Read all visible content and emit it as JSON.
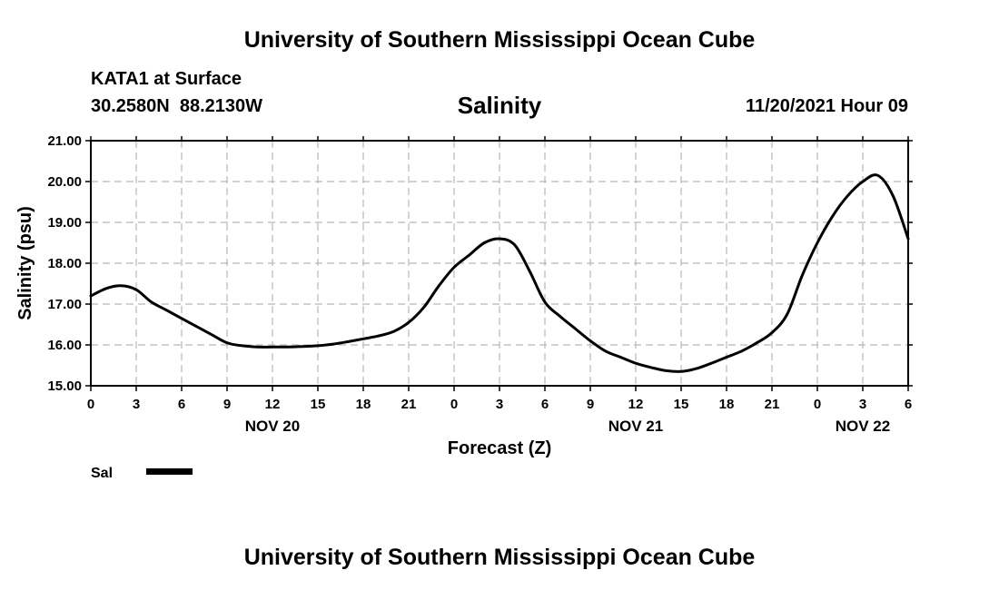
{
  "header": {
    "title": "University of Southern Mississippi Ocean Cube",
    "station": "KATA1 at Surface",
    "coords": "30.2580N  88.2130W",
    "variable": "Salinity",
    "datetime": "11/20/2021 Hour 09"
  },
  "footer": {
    "title": "University of Southern Mississippi Ocean Cube"
  },
  "legend": {
    "label": "Sal"
  },
  "colors": {
    "line": "#000000",
    "grid": "#b8b8b8",
    "background": "#ffffff"
  },
  "chart_data": {
    "type": "line",
    "title": "Salinity",
    "xlabel": "Forecast (Z)",
    "ylabel": "Salinity (psu)",
    "xlim": [
      0,
      54
    ],
    "ylim": [
      15.0,
      21.0
    ],
    "grid": true,
    "legend_position": "bottom-left",
    "x_ticks": [
      0,
      3,
      6,
      9,
      12,
      15,
      18,
      21,
      24,
      27,
      30,
      33,
      36,
      39,
      42,
      45,
      48,
      51,
      54
    ],
    "x_tick_labels": [
      "0",
      "3",
      "6",
      "9",
      "12",
      "15",
      "18",
      "21",
      "0",
      "3",
      "6",
      "9",
      "12",
      "15",
      "18",
      "21",
      "0",
      "3",
      "6"
    ],
    "y_ticks": [
      15.0,
      16.0,
      17.0,
      18.0,
      19.0,
      20.0,
      21.0
    ],
    "y_tick_labels": [
      "15.00",
      "16.00",
      "17.00",
      "18.00",
      "19.00",
      "20.00",
      "21.00"
    ],
    "date_labels": [
      {
        "x": 12,
        "label": "NOV 20"
      },
      {
        "x": 36,
        "label": "NOV 21"
      },
      {
        "x": 51,
        "label": "NOV 22"
      }
    ],
    "series": [
      {
        "name": "Sal",
        "x": [
          0,
          1,
          2,
          3,
          4,
          5,
          6,
          7,
          8,
          9,
          10,
          11,
          12,
          13,
          14,
          15,
          16,
          17,
          18,
          19,
          20,
          21,
          22,
          23,
          24,
          25,
          26,
          27,
          28,
          29,
          30,
          31,
          32,
          33,
          34,
          35,
          36,
          37,
          38,
          39,
          40,
          41,
          42,
          43,
          44,
          45,
          46,
          47,
          48,
          49,
          50,
          51,
          52,
          53,
          54
        ],
        "values": [
          17.2,
          17.38,
          17.45,
          17.35,
          17.05,
          16.85,
          16.65,
          16.45,
          16.25,
          16.05,
          15.98,
          15.95,
          15.95,
          15.95,
          15.96,
          15.98,
          16.02,
          16.08,
          16.15,
          16.22,
          16.33,
          16.55,
          16.92,
          17.45,
          17.9,
          18.2,
          18.5,
          18.6,
          18.45,
          17.8,
          17.05,
          16.7,
          16.4,
          16.1,
          15.85,
          15.7,
          15.55,
          15.45,
          15.37,
          15.35,
          15.42,
          15.55,
          15.7,
          15.85,
          16.05,
          16.3,
          16.75,
          17.7,
          18.5,
          19.15,
          19.65,
          20.0,
          20.15,
          19.65,
          18.6
        ]
      }
    ]
  }
}
